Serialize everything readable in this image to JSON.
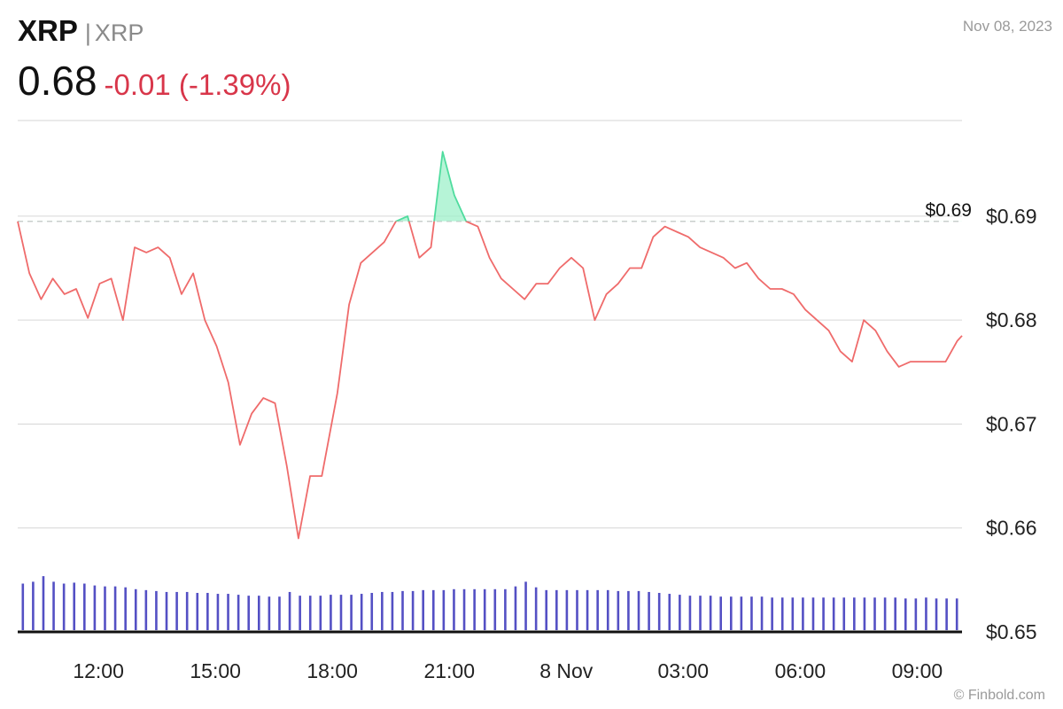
{
  "header": {
    "symbol": "XRP",
    "separator": "|",
    "name": "XRP",
    "price": "0.68",
    "change": "-0.01 (-1.39%)",
    "date": "Nov 08, 2023"
  },
  "credit": "© Finbold.com",
  "colors": {
    "line_below": "#ef6b6b",
    "line_above": "#4fdc9e",
    "fill_above": "#9ef0c9",
    "volume": "#5450c4",
    "grid": "#d6d6d6",
    "reference": "#cccccc",
    "change_text": "#d8364a"
  },
  "chart_data": {
    "type": "line",
    "title": "",
    "xlabel": "",
    "ylabel": "",
    "ylim": [
      0.65,
      0.6992
    ],
    "yticks": [
      0.69,
      0.68,
      0.67,
      0.66,
      0.65
    ],
    "ytick_labels": [
      "$0.69",
      "$0.68",
      "$0.67",
      "$0.66",
      "$0.65"
    ],
    "xlim": [
      -2.07,
      22.15
    ],
    "xticks": [
      0,
      3,
      6,
      9,
      12,
      15,
      18,
      21
    ],
    "xtick_labels": [
      "12:00",
      "15:00",
      "18:00",
      "21:00",
      "8 Nov",
      "03:00",
      "06:00",
      "09:00"
    ],
    "reference_value": 0.6895,
    "reference_label": "$0.69",
    "grid": true,
    "series": [
      {
        "x": [
          -2.07,
          -1.77,
          -1.47,
          -1.17,
          -0.87,
          -0.57,
          -0.27,
          0.03,
          0.33,
          0.63,
          0.93,
          1.23,
          1.53,
          1.83,
          2.13,
          2.43,
          2.73,
          3.03,
          3.33,
          3.63,
          3.93,
          4.23,
          4.53,
          4.83,
          5.13,
          5.43,
          5.73,
          5.93,
          6.13,
          6.43,
          6.73,
          7.03,
          7.33,
          7.63,
          7.93,
          8.23,
          8.53,
          8.83,
          9.13,
          9.43,
          9.73,
          10.03,
          10.33,
          10.63,
          10.93,
          11.23,
          11.53,
          11.83,
          12.13,
          12.43,
          12.73,
          13.03,
          13.33,
          13.63,
          13.93,
          14.23,
          14.53,
          14.83,
          15.13,
          15.43,
          15.73,
          16.03,
          16.33,
          16.63,
          16.93,
          17.23,
          17.53,
          17.83,
          18.13,
          18.43,
          18.73,
          19.03,
          19.33,
          19.63,
          19.93,
          20.23,
          20.53,
          20.83,
          21.13,
          21.43,
          21.73,
          22.03,
          22.15
        ],
        "y": [
          0.6895,
          0.6845,
          0.682,
          0.684,
          0.6825,
          0.683,
          0.6802,
          0.6835,
          0.684,
          0.68,
          0.687,
          0.6865,
          0.687,
          0.686,
          0.6825,
          0.6845,
          0.68,
          0.6775,
          0.674,
          0.668,
          0.671,
          0.6725,
          0.672,
          0.666,
          0.659,
          0.665,
          0.665,
          0.669,
          0.673,
          0.6815,
          0.6855,
          0.6865,
          0.6875,
          0.6895,
          0.69,
          0.686,
          0.687,
          0.6962,
          0.692,
          0.6895,
          0.689,
          0.686,
          0.684,
          0.683,
          0.682,
          0.6835,
          0.6835,
          0.685,
          0.686,
          0.685,
          0.68,
          0.6825,
          0.6835,
          0.685,
          0.685,
          0.688,
          0.689,
          0.6885,
          0.688,
          0.687,
          0.6865,
          0.686,
          0.685,
          0.6855,
          0.684,
          0.683,
          0.683,
          0.6825,
          0.681,
          0.68,
          0.679,
          0.677,
          0.676,
          0.68,
          0.679,
          0.677,
          0.6755,
          0.676,
          0.676,
          0.676,
          0.676,
          0.678,
          0.6785
        ]
      }
    ],
    "volume": [
      0.5,
      0.52,
      0.58,
      0.52,
      0.5,
      0.51,
      0.5,
      0.48,
      0.47,
      0.47,
      0.46,
      0.44,
      0.43,
      0.42,
      0.41,
      0.41,
      0.41,
      0.4,
      0.4,
      0.39,
      0.39,
      0.38,
      0.37,
      0.37,
      0.36,
      0.36,
      0.41,
      0.37,
      0.37,
      0.37,
      0.38,
      0.38,
      0.38,
      0.39,
      0.4,
      0.41,
      0.41,
      0.42,
      0.42,
      0.43,
      0.43,
      0.43,
      0.44,
      0.44,
      0.44,
      0.44,
      0.44,
      0.44,
      0.47,
      0.52,
      0.46,
      0.43,
      0.43,
      0.43,
      0.43,
      0.43,
      0.43,
      0.43,
      0.42,
      0.42,
      0.42,
      0.41,
      0.4,
      0.39,
      0.38,
      0.37,
      0.37,
      0.37,
      0.36,
      0.36,
      0.36,
      0.36,
      0.36,
      0.35,
      0.35,
      0.35,
      0.35,
      0.35,
      0.35,
      0.35,
      0.35,
      0.35,
      0.35,
      0.35,
      0.35,
      0.35,
      0.34,
      0.34,
      0.35,
      0.34,
      0.34,
      0.34
    ]
  }
}
